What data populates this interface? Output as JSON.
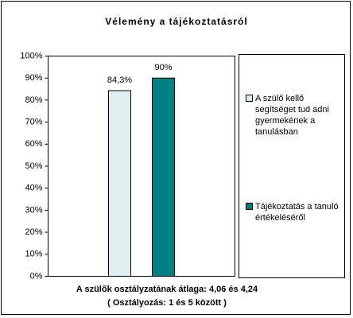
{
  "chart_data": {
    "type": "bar",
    "title": "Vélemény a tájékoztatásról",
    "xlabel": [
      "A szülők osztályzatának átlaga: 4,06 és 4,24",
      "( Osztályozás: 1 és 5 között )"
    ],
    "categories": [
      null
    ],
    "series": [
      {
        "name": "A szülő kellő segítséget tud adni gyermekének a tanulásban",
        "color": "#dfeeee",
        "values": [
          84.3
        ],
        "value_labels": [
          "84,3%"
        ]
      },
      {
        "name": "Tájékoztatás a tanuló értékeléséről",
        "color": "#008080",
        "values": [
          90
        ],
        "value_labels": [
          "90%"
        ]
      }
    ],
    "ylim": [
      0,
      100
    ],
    "yticks": [
      {
        "value": 0,
        "label": "0%"
      },
      {
        "value": 10,
        "label": "10%"
      },
      {
        "value": 20,
        "label": "20%"
      },
      {
        "value": 30,
        "label": "30%"
      },
      {
        "value": 40,
        "label": "40%"
      },
      {
        "value": 50,
        "label": "50%"
      },
      {
        "value": 60,
        "label": "60%"
      },
      {
        "value": 70,
        "label": "70%"
      },
      {
        "value": 80,
        "label": "80%"
      },
      {
        "value": 90,
        "label": "90%"
      },
      {
        "value": 100,
        "label": "100%"
      }
    ],
    "legend": "right"
  }
}
